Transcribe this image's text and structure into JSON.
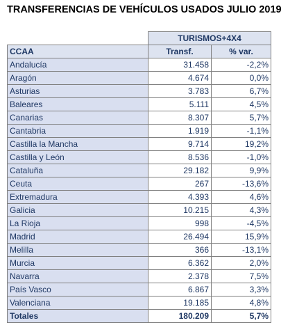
{
  "title": "TRANSFERENCIAS DE VEHÍCULOS USADOS JULIO 2019",
  "table": {
    "group_header": "TURISMOS+4X4",
    "columns": [
      "CCAA",
      "Transf.",
      "% var."
    ],
    "rows": [
      {
        "ccaa": "Andalucía",
        "transf": "31.458",
        "var": "-2,2%"
      },
      {
        "ccaa": "Aragón",
        "transf": "4.674",
        "var": "0,0%"
      },
      {
        "ccaa": "Asturias",
        "transf": "3.783",
        "var": "6,7%"
      },
      {
        "ccaa": "Baleares",
        "transf": "5.111",
        "var": "4,5%"
      },
      {
        "ccaa": "Canarias",
        "transf": "8.307",
        "var": "5,7%"
      },
      {
        "ccaa": "Cantabria",
        "transf": "1.919",
        "var": "-1,1%"
      },
      {
        "ccaa": "Castilla la Mancha",
        "transf": "9.714",
        "var": "19,2%"
      },
      {
        "ccaa": "Castilla y León",
        "transf": "8.536",
        "var": "-1,0%"
      },
      {
        "ccaa": "Cataluña",
        "transf": "29.182",
        "var": "9,9%"
      },
      {
        "ccaa": "Ceuta",
        "transf": "267",
        "var": "-13,6%"
      },
      {
        "ccaa": "Extremadura",
        "transf": "4.393",
        "var": "4,6%"
      },
      {
        "ccaa": "Galicia",
        "transf": "10.215",
        "var": "4,3%"
      },
      {
        "ccaa": "La Rioja",
        "transf": "998",
        "var": "-4,5%"
      },
      {
        "ccaa": "Madrid",
        "transf": "26.494",
        "var": "15,9%"
      },
      {
        "ccaa": "Melilla",
        "transf": "366",
        "var": "-13,1%"
      },
      {
        "ccaa": "Murcia",
        "transf": "6.362",
        "var": "2,0%"
      },
      {
        "ccaa": "Navarra",
        "transf": "2.378",
        "var": "7,5%"
      },
      {
        "ccaa": "País Vasco",
        "transf": "6.867",
        "var": "3,3%"
      },
      {
        "ccaa": "Valenciana",
        "transf": "19.185",
        "var": "4,8%"
      }
    ],
    "totals": {
      "label": "Totales",
      "transf": "180.209",
      "var": "5,7%"
    }
  },
  "colors": {
    "label_fill": "#d9dff0",
    "text": "#1f3864",
    "border": "#808080"
  }
}
